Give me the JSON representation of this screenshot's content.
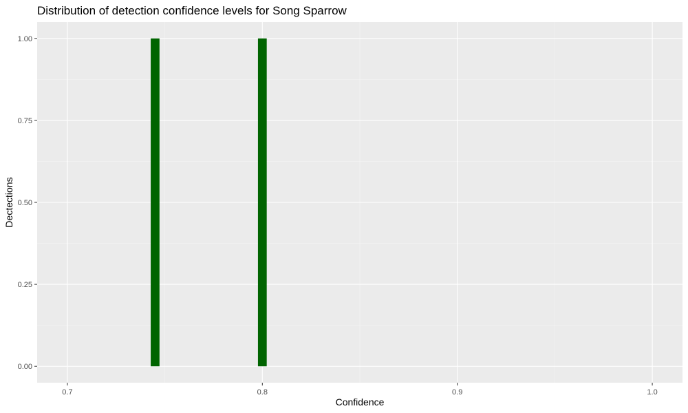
{
  "chart_data": {
    "type": "bar",
    "title": "Distribution of detection confidence levels for Song Sparrow",
    "xlabel": "Confidence",
    "ylabel": "Dectections",
    "bars": [
      {
        "x": 0.745,
        "value": 1
      },
      {
        "x": 0.8,
        "value": 1
      }
    ],
    "bin_width": 0.0045,
    "xlim": [
      0.6845,
      1.0155
    ],
    "ylim": [
      -0.05,
      1.05
    ],
    "x_ticks": [
      0.7,
      0.8,
      0.9,
      1.0
    ],
    "x_tick_labels": [
      "0.7",
      "0.8",
      "0.9",
      "1.0"
    ],
    "y_ticks": [
      0,
      0.25,
      0.5,
      0.75,
      1.0
    ],
    "y_tick_labels": [
      "0.00",
      "0.25",
      "0.50",
      "0.75",
      "1.00"
    ],
    "grid": true,
    "legend": "none",
    "colors": {
      "bar_fill": "#006400",
      "panel_background": "#ebebeb",
      "grid_major": "#ffffff",
      "grid_minor": "#f5f5f5",
      "tick_label": "#4d4d4d",
      "tick_mark": "#333333"
    }
  }
}
